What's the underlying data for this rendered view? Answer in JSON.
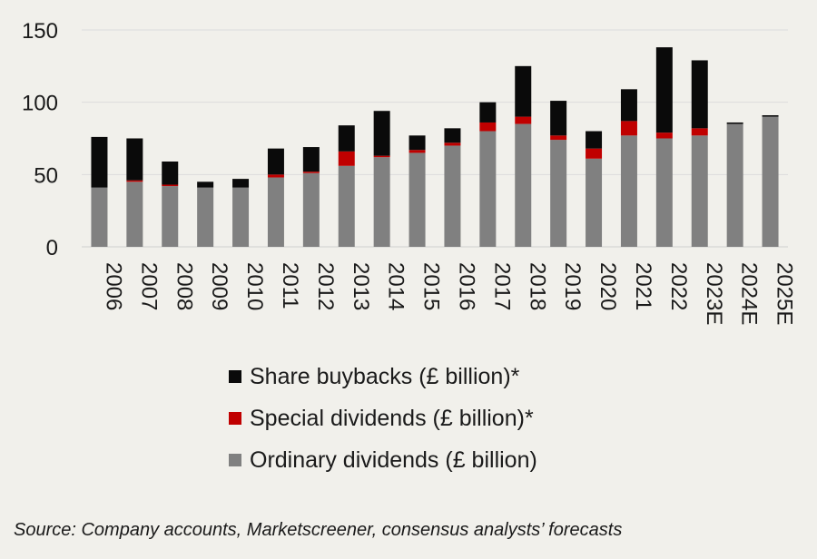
{
  "chart_data": {
    "type": "bar",
    "stacked": true,
    "categories": [
      "2006",
      "2007",
      "2008",
      "2009",
      "2010",
      "2011",
      "2012",
      "2013",
      "2014",
      "2015",
      "2016",
      "2017",
      "2018",
      "2019",
      "2020",
      "2021",
      "2022",
      "2023E",
      "2024E",
      "2025E"
    ],
    "series": [
      {
        "name": "Ordinary dividends (£ billion)",
        "color": "#808080",
        "values": [
          41,
          45,
          42,
          41,
          41,
          48,
          51,
          56,
          62,
          65,
          70,
          80,
          85,
          74,
          61,
          77,
          75,
          77,
          85,
          90
        ]
      },
      {
        "name": "Special dividends (£ billion)",
        "color": "#c00000",
        "values": [
          0,
          1,
          1,
          0,
          0,
          2,
          1,
          10,
          1,
          2,
          2,
          6,
          5,
          3,
          7,
          10,
          4,
          5,
          0,
          0
        ]
      },
      {
        "name": "Share buybacks (£ billion)*",
        "color": "#0a0a0a",
        "values": [
          35,
          29,
          16,
          4,
          6,
          18,
          17,
          18,
          31,
          10,
          10,
          14,
          35,
          24,
          12,
          22,
          59,
          47,
          1,
          1
        ]
      }
    ],
    "yticks": [
      0,
      50,
      100,
      150
    ],
    "ylim": [
      0,
      150
    ],
    "title": "",
    "xlabel": "",
    "ylabel": "",
    "grid": true,
    "legend_position": "bottom-center"
  },
  "legend": {
    "items": [
      {
        "label": "Share buybacks (£ billion)*",
        "color": "#0a0a0a"
      },
      {
        "label": "Special dividends (£ billion)*",
        "color": "#c00000"
      },
      {
        "label": "Ordinary dividends (£ billion)",
        "color": "#808080"
      }
    ]
  },
  "source": "Source: Company accounts, Marketscreener, consensus analysts’ forecasts"
}
